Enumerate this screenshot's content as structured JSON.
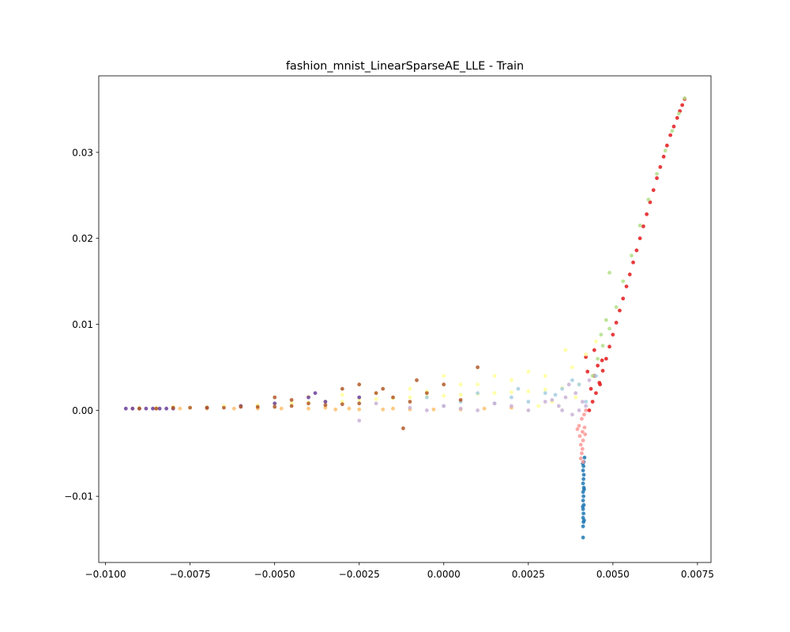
{
  "chart_data": {
    "type": "scatter",
    "title": "fashion_mnist_LinearSparseAE_LLE - Train",
    "xlabel": "",
    "ylabel": "",
    "xlim": [
      -0.0102,
      0.0079
    ],
    "ylim": [
      -0.0177,
      0.0389
    ],
    "grid": false,
    "legend": "none",
    "x_ticks": [
      {
        "value": -0.01,
        "label": "−0.0100"
      },
      {
        "value": -0.0075,
        "label": "−0.0075"
      },
      {
        "value": -0.005,
        "label": "−0.0050"
      },
      {
        "value": -0.0025,
        "label": "−0.0025"
      },
      {
        "value": 0.0,
        "label": "0.0000"
      },
      {
        "value": 0.0025,
        "label": "0.0025"
      },
      {
        "value": 0.005,
        "label": "0.0050"
      },
      {
        "value": 0.0075,
        "label": "0.0075"
      }
    ],
    "y_ticks": [
      {
        "value": -0.01,
        "label": "−0.01"
      },
      {
        "value": 0.0,
        "label": "0.00"
      },
      {
        "value": 0.01,
        "label": "0.01"
      },
      {
        "value": 0.02,
        "label": "0.02"
      },
      {
        "value": 0.03,
        "label": "0.03"
      }
    ],
    "series": [
      {
        "color": "#1f78b4",
        "points": [
          [
            0.00412,
            -0.0148
          ],
          [
            0.00412,
            -0.0135
          ],
          [
            0.00413,
            -0.013
          ],
          [
            0.00412,
            -0.0125
          ],
          [
            0.00413,
            -0.012
          ],
          [
            0.00412,
            -0.0115
          ],
          [
            0.00414,
            -0.011
          ],
          [
            0.00412,
            -0.0105
          ],
          [
            0.00413,
            -0.01
          ],
          [
            0.00412,
            -0.0095
          ],
          [
            0.00414,
            -0.009
          ],
          [
            0.00412,
            -0.0085
          ],
          [
            0.00413,
            -0.008
          ],
          [
            0.00414,
            -0.0075
          ],
          [
            0.00412,
            -0.007
          ],
          [
            0.00413,
            -0.0065
          ],
          [
            0.00414,
            -0.006
          ],
          [
            0.00416,
            -0.0055
          ],
          [
            0.00411,
            -0.0062
          ],
          [
            0.00415,
            -0.0092
          ],
          [
            0.00411,
            -0.0112
          ],
          [
            0.00415,
            -0.0128
          ]
        ]
      },
      {
        "color": "#fb9a99",
        "points": [
          [
            0.00408,
            -0.005
          ],
          [
            0.0041,
            -0.0045
          ],
          [
            0.00405,
            -0.004
          ],
          [
            0.00412,
            -0.0035
          ],
          [
            0.00402,
            -0.003
          ],
          [
            0.0041,
            -0.0025
          ],
          [
            0.00416,
            -0.002
          ],
          [
            0.004,
            -0.0018
          ],
          [
            0.00408,
            -0.001
          ],
          [
            0.00415,
            -0.0005
          ],
          [
            0.0042,
            0.0
          ],
          [
            0.00395,
            -0.0022
          ],
          [
            0.00405,
            -0.0056
          ],
          [
            0.00412,
            -0.006
          ],
          [
            0.00418,
            -0.0028
          ]
        ]
      },
      {
        "color": "#e31a1c",
        "points": [
          [
            0.00712,
            0.0362
          ],
          [
            0.00705,
            0.0355
          ],
          [
            0.00698,
            0.0348
          ],
          [
            0.0069,
            0.034
          ],
          [
            0.0068,
            0.033
          ],
          [
            0.0067,
            0.032
          ],
          [
            0.0066,
            0.0308
          ],
          [
            0.0065,
            0.0295
          ],
          [
            0.0064,
            0.0283
          ],
          [
            0.0063,
            0.027
          ],
          [
            0.0062,
            0.0256
          ],
          [
            0.0061,
            0.0242
          ],
          [
            0.006,
            0.0228
          ],
          [
            0.0059,
            0.0214
          ],
          [
            0.0058,
            0.02
          ],
          [
            0.0057,
            0.0186
          ],
          [
            0.0056,
            0.0172
          ],
          [
            0.0055,
            0.0158
          ],
          [
            0.0054,
            0.0144
          ],
          [
            0.0053,
            0.013
          ],
          [
            0.0052,
            0.0116
          ],
          [
            0.0051,
            0.0102
          ],
          [
            0.005,
            0.0088
          ],
          [
            0.0049,
            0.0074
          ],
          [
            0.0048,
            0.006
          ],
          [
            0.0047,
            0.0046
          ],
          [
            0.0046,
            0.0032
          ],
          [
            0.0045,
            0.002
          ],
          [
            0.0044,
            0.001
          ],
          [
            0.0043,
            0.0
          ],
          [
            0.00455,
            0.0052
          ],
          [
            0.00445,
            0.004
          ],
          [
            0.00468,
            0.0058
          ],
          [
            0.00425,
            0.0045
          ],
          [
            0.0042,
            0.0062
          ],
          [
            0.00445,
            0.007
          ],
          [
            0.00435,
            0.0025
          ],
          [
            0.00462,
            0.003
          ]
        ]
      },
      {
        "color": "#b2df8a",
        "points": [
          [
            0.00712,
            0.0363
          ],
          [
            0.00695,
            0.0345
          ],
          [
            0.00675,
            0.0325
          ],
          [
            0.00655,
            0.0302
          ],
          [
            0.0063,
            0.0275
          ],
          [
            0.00605,
            0.0245
          ],
          [
            0.0058,
            0.0215
          ],
          [
            0.00555,
            0.018
          ],
          [
            0.0053,
            0.015
          ],
          [
            0.0051,
            0.012
          ],
          [
            0.0049,
            0.0095
          ],
          [
            0.0047,
            0.0075
          ],
          [
            0.00455,
            0.006
          ],
          [
            0.0044,
            0.004
          ],
          [
            0.0049,
            0.016
          ],
          [
            0.0048,
            0.0105
          ],
          [
            0.00465,
            0.0088
          ]
        ]
      },
      {
        "color": "#ffff99",
        "points": [
          [
            -0.009,
            0.0003
          ],
          [
            -0.0085,
            0.0003
          ],
          [
            -0.008,
            0.0004
          ],
          [
            -0.0075,
            0.0003
          ],
          [
            -0.007,
            0.0004
          ],
          [
            -0.0065,
            0.0005
          ],
          [
            -0.006,
            0.0005
          ],
          [
            -0.0055,
            0.0006
          ],
          [
            -0.005,
            0.0007
          ],
          [
            -0.0045,
            0.0008
          ],
          [
            -0.004,
            0.0009
          ],
          [
            -0.0035,
            0.001
          ],
          [
            -0.003,
            0.001
          ],
          [
            -0.0025,
            0.0012
          ],
          [
            -0.002,
            0.0013
          ],
          [
            -0.0015,
            0.0014
          ],
          [
            -0.001,
            0.0015
          ],
          [
            -0.0005,
            0.0016
          ],
          [
            0.0,
            0.0017
          ],
          [
            0.0005,
            0.0018
          ],
          [
            0.001,
            0.0019
          ],
          [
            0.0015,
            0.002
          ],
          [
            0.002,
            0.0021
          ],
          [
            0.0025,
            0.0022
          ],
          [
            0.003,
            0.0024
          ],
          [
            0.0035,
            0.0026
          ],
          [
            0.004,
            0.003
          ],
          [
            0.0038,
            0.005
          ],
          [
            0.0036,
            0.007
          ],
          [
            0.003,
            0.004
          ],
          [
            0.002,
            0.0035
          ],
          [
            0.001,
            0.003
          ],
          [
            0.0,
            0.004
          ],
          [
            -0.001,
            0.0025
          ],
          [
            -0.002,
            0.002
          ],
          [
            -0.003,
            0.0018
          ],
          [
            -0.004,
            0.0016
          ],
          [
            0.0045,
            0.008
          ],
          [
            0.0042,
            0.0065
          ],
          [
            0.0025,
            0.0045
          ],
          [
            0.0015,
            0.004
          ],
          [
            0.0005,
            0.003
          ],
          [
            -0.0005,
            0.0022
          ],
          [
            0.0032,
            0.001
          ],
          [
            0.0028,
            0.0005
          ],
          [
            0.0039,
            0.0015
          ]
        ]
      },
      {
        "color": "#fdbf6f",
        "points": [
          [
            -0.0092,
            0.0002
          ],
          [
            -0.0085,
            0.0002
          ],
          [
            -0.0078,
            0.0002
          ],
          [
            -0.007,
            0.0002
          ],
          [
            -0.0062,
            0.0002
          ],
          [
            -0.0055,
            0.0002
          ],
          [
            -0.0048,
            0.0002
          ],
          [
            -0.004,
            0.0002
          ],
          [
            -0.0032,
            0.0001
          ],
          [
            -0.0025,
            0.0001
          ],
          [
            -0.0018,
            0.0001
          ],
          [
            -0.001,
            0.0001
          ],
          [
            -0.0003,
            0.0001
          ],
          [
            0.0005,
            0.0001
          ],
          [
            0.0012,
            0.0002
          ],
          [
            0.002,
            0.0003
          ],
          [
            -0.0035,
            0.0003
          ],
          [
            -0.0028,
            0.0002
          ],
          [
            -0.0015,
            0.0002
          ]
        ]
      },
      {
        "color": "#a6cee3",
        "points": [
          [
            -0.0005,
            0.0015
          ],
          [
            0.0,
            0.0005
          ],
          [
            0.0005,
            0.001
          ],
          [
            0.001,
            0.002
          ],
          [
            0.0015,
            0.0008
          ],
          [
            0.002,
            0.0015
          ],
          [
            0.0025,
            0.001
          ],
          [
            0.003,
            0.002
          ],
          [
            0.0035,
            0.0025
          ],
          [
            0.004,
            0.003
          ],
          [
            0.0042,
            0.001
          ],
          [
            0.0045,
            0.004
          ],
          [
            0.0038,
            0.0035
          ],
          [
            0.0033,
            0.0018
          ],
          [
            0.0022,
            0.0025
          ]
        ]
      },
      {
        "color": "#cab2d6",
        "points": [
          [
            0.004,
            0.0
          ],
          [
            0.0038,
            -0.0005
          ],
          [
            0.0035,
            0.0
          ],
          [
            0.0042,
            0.0005
          ],
          [
            0.0036,
            0.0015
          ],
          [
            0.003,
            0.001
          ],
          [
            0.0025,
            0.0
          ],
          [
            0.002,
            0.0005
          ],
          [
            0.0015,
            0.0008
          ],
          [
            0.001,
            0.0
          ],
          [
            0.0005,
            0.0002
          ],
          [
            0.0,
            0.0005
          ],
          [
            -0.0005,
            0.0
          ],
          [
            -0.001,
            0.0003
          ],
          [
            -0.002,
            0.0008
          ],
          [
            -0.0025,
            -0.0012
          ],
          [
            0.0032,
            0.0012
          ],
          [
            0.0039,
            0.002
          ],
          [
            0.0041,
            0.001
          ],
          [
            0.0037,
            0.003
          ],
          [
            0.0043,
            0.0035
          ],
          [
            0.0034,
            0.0005
          ]
        ]
      },
      {
        "color": "#6a3d9a",
        "points": [
          [
            -0.0094,
            0.0002
          ],
          [
            -0.0092,
            0.0002
          ],
          [
            -0.009,
            0.0002
          ],
          [
            -0.0088,
            0.0002
          ],
          [
            -0.0086,
            0.0002
          ],
          [
            -0.0084,
            0.0002
          ],
          [
            -0.0082,
            0.0002
          ],
          [
            -0.008,
            0.0002
          ],
          [
            -0.007,
            0.0003
          ],
          [
            -0.006,
            0.0005
          ],
          [
            -0.005,
            0.0008
          ],
          [
            -0.004,
            0.0015
          ],
          [
            -0.0038,
            0.002
          ],
          [
            -0.0035,
            0.001
          ],
          [
            -0.0025,
            0.0015
          ]
        ]
      },
      {
        "color": "#b15928",
        "points": [
          [
            -0.009,
            0.0002
          ],
          [
            -0.0085,
            0.0002
          ],
          [
            -0.008,
            0.0003
          ],
          [
            -0.0075,
            0.0003
          ],
          [
            -0.007,
            0.0003
          ],
          [
            -0.0065,
            0.0003
          ],
          [
            -0.006,
            0.0004
          ],
          [
            -0.0055,
            0.0004
          ],
          [
            -0.005,
            0.0004
          ],
          [
            -0.0045,
            0.0005
          ],
          [
            -0.004,
            0.0008
          ],
          [
            -0.0035,
            0.0006
          ],
          [
            -0.003,
            0.0007
          ],
          [
            -0.0025,
            0.0008
          ],
          [
            -0.002,
            0.002
          ],
          [
            -0.0015,
            0.0015
          ],
          [
            -0.001,
            0.001
          ],
          [
            -0.0005,
            0.002
          ],
          [
            0.0,
            0.003
          ],
          [
            0.001,
            0.005
          ],
          [
            -0.003,
            0.0025
          ],
          [
            -0.005,
            0.0015
          ],
          [
            -0.0012,
            -0.0021
          ],
          [
            -0.0025,
            0.003
          ],
          [
            -0.0008,
            0.0035
          ],
          [
            -0.0018,
            0.0025
          ],
          [
            -0.0045,
            0.0012
          ],
          [
            0.0005,
            0.0012
          ]
        ]
      }
    ]
  }
}
